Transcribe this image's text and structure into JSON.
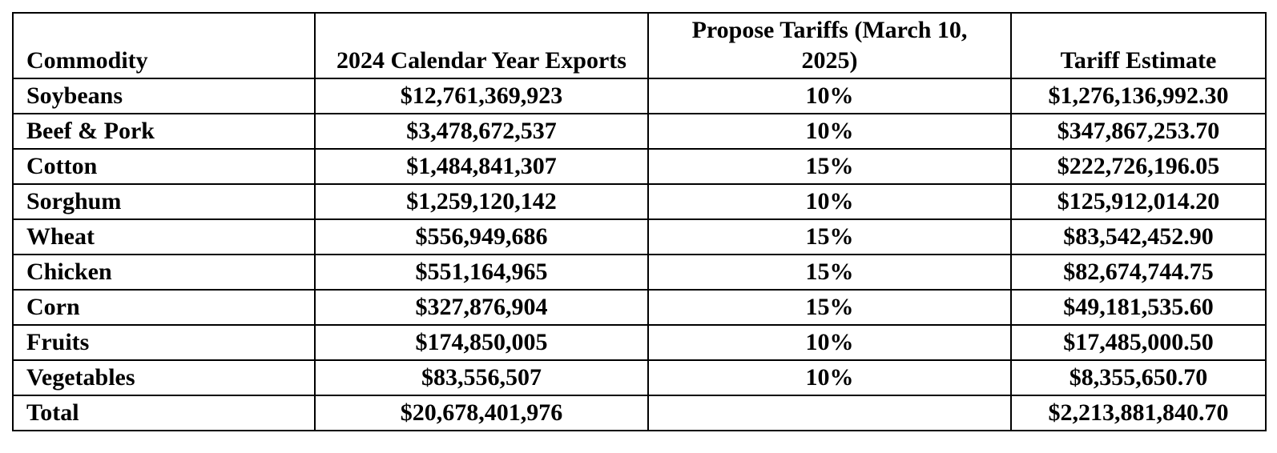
{
  "table": {
    "headers": {
      "commodity": "Commodity",
      "exports": "2024 Calendar Year Exports",
      "tariff": "Propose Tariffs (March 10, 2025)",
      "estimate": "Tariff Estimate"
    },
    "rows": [
      {
        "commodity": "Soybeans",
        "exports": "$12,761,369,923",
        "tariff": "10%",
        "estimate": "$1,276,136,992.30"
      },
      {
        "commodity": "Beef & Pork",
        "exports": "$3,478,672,537",
        "tariff": "10%",
        "estimate": "$347,867,253.70"
      },
      {
        "commodity": "Cotton",
        "exports": "$1,484,841,307",
        "tariff": "15%",
        "estimate": "$222,726,196.05"
      },
      {
        "commodity": "Sorghum",
        "exports": "$1,259,120,142",
        "tariff": "10%",
        "estimate": "$125,912,014.20"
      },
      {
        "commodity": "Wheat",
        "exports": "$556,949,686",
        "tariff": "15%",
        "estimate": "$83,542,452.90"
      },
      {
        "commodity": "Chicken",
        "exports": "$551,164,965",
        "tariff": "15%",
        "estimate": "$82,674,744.75"
      },
      {
        "commodity": "Corn",
        "exports": "$327,876,904",
        "tariff": "15%",
        "estimate": "$49,181,535.60"
      },
      {
        "commodity": "Fruits",
        "exports": "$174,850,005",
        "tariff": "10%",
        "estimate": "$17,485,000.50"
      },
      {
        "commodity": "Vegetables",
        "exports": "$83,556,507",
        "tariff": "10%",
        "estimate": "$8,355,650.70"
      },
      {
        "commodity": "Total",
        "exports": "$20,678,401,976",
        "tariff": "",
        "estimate": "$2,213,881,840.70"
      }
    ]
  }
}
